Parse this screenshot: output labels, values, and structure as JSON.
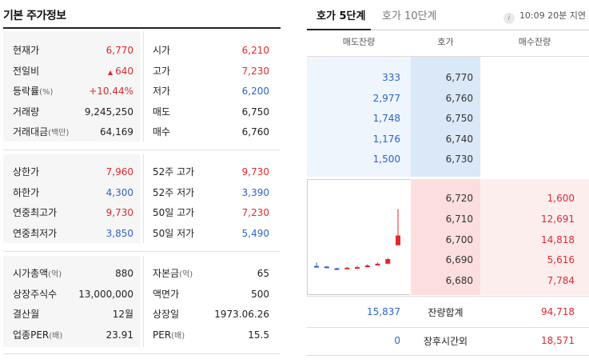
{
  "basic": {
    "title": "기본 주가정보",
    "block1": [
      {
        "l1": "현재가",
        "v1": "6,770",
        "c1": "red",
        "l2": "시가",
        "v2": "6,210",
        "c2": "red"
      },
      {
        "l1": "전일비",
        "v1": "640",
        "c1": "red",
        "tri": "▲",
        "l2": "고가",
        "v2": "7,230",
        "c2": "red"
      },
      {
        "l1": "등락률",
        "l1s": "(%)",
        "v1": "+10.44%",
        "c1": "red",
        "l2": "저가",
        "v2": "6,200",
        "c2": "blue"
      },
      {
        "l1": "거래량",
        "v1": "9,245,250",
        "c1": "",
        "l2": "매도",
        "v2": "6,750",
        "c2": ""
      },
      {
        "l1": "거래대금",
        "l1s": "(백만)",
        "v1": "64,169",
        "c1": "",
        "l2": "매수",
        "v2": "6,760",
        "c2": ""
      }
    ],
    "block2": [
      {
        "l1": "상한가",
        "v1": "7,960",
        "c1": "red",
        "l2": "52주 고가",
        "v2": "9,730",
        "c2": "red"
      },
      {
        "l1": "하한가",
        "v1": "4,300",
        "c1": "blue",
        "l2": "52주 저가",
        "v2": "3,390",
        "c2": "blue"
      },
      {
        "l1": "연중최고가",
        "v1": "9,730",
        "c1": "red",
        "l2": "50일 고가",
        "v2": "7,230",
        "c2": "red"
      },
      {
        "l1": "연중최저가",
        "v1": "3,850",
        "c1": "blue",
        "l2": "50일 저가",
        "v2": "5,490",
        "c2": "blue"
      }
    ],
    "block3": [
      {
        "l1": "시가총액",
        "l1s": "(억)",
        "v1": "880",
        "c1": "",
        "l2": "자본금",
        "l2s": "(억)",
        "v2": "65",
        "c2": ""
      },
      {
        "l1": "상장주식수",
        "v1": "13,000,000",
        "c1": "",
        "l2": "액면가",
        "v2": "500",
        "c2": ""
      },
      {
        "l1": "결산월",
        "v1": "12월",
        "c1": "",
        "l2": "상장일",
        "v2": "1973.06.26",
        "c2": ""
      },
      {
        "l1": "업종PER",
        "l1s": "(배)",
        "v1": "23.91",
        "c1": "",
        "l2": "PER",
        "l2s": "(배)",
        "v2": "15.5",
        "c2": ""
      }
    ]
  },
  "orderbook": {
    "tab_active": "호가 5단계",
    "tab_inactive": "호가 10단계",
    "delay_text": "10:09 20분 지연",
    "headers": {
      "ask": "매도잔량",
      "price": "호가",
      "bid": "매수잔량"
    },
    "asks": [
      {
        "vol": "333",
        "price": "6,770"
      },
      {
        "vol": "2,977",
        "price": "6,760"
      },
      {
        "vol": "1,748",
        "price": "6,750"
      },
      {
        "vol": "1,176",
        "price": "6,740"
      },
      {
        "vol": "1,500",
        "price": "6,730"
      }
    ],
    "bids": [
      {
        "price": "6,720",
        "vol": "1,600"
      },
      {
        "price": "6,710",
        "vol": "12,691"
      },
      {
        "price": "6,700",
        "vol": "14,818"
      },
      {
        "price": "6,690",
        "vol": "5,616"
      },
      {
        "price": "6,680",
        "vol": "7,784"
      }
    ],
    "total": {
      "ask": "15,837",
      "label": "잔량합계",
      "bid": "94,718"
    },
    "after": {
      "ask": "0",
      "label": "장후시간외",
      "bid": "18,571"
    }
  },
  "colors": {
    "up": "#e0292e",
    "down": "#2e63c8"
  },
  "chart_data": {
    "type": "candlestick",
    "candles": [
      {
        "o": 6240,
        "c": 6240,
        "h": 6300,
        "l": 6230,
        "dir": "down"
      },
      {
        "o": 6230,
        "c": 6210,
        "h": 6240,
        "l": 6210,
        "dir": "down"
      },
      {
        "o": 6200,
        "c": 6200,
        "h": 6210,
        "l": 6200,
        "dir": "down"
      },
      {
        "o": 6200,
        "c": 6210,
        "h": 6220,
        "l": 6200,
        "dir": "up"
      },
      {
        "o": 6210,
        "c": 6220,
        "h": 6240,
        "l": 6210,
        "dir": "up"
      },
      {
        "o": 6220,
        "c": 6250,
        "h": 6270,
        "l": 6220,
        "dir": "up"
      },
      {
        "o": 6250,
        "c": 6280,
        "h": 6300,
        "l": 6250,
        "dir": "up"
      },
      {
        "o": 6280,
        "c": 6360,
        "h": 6380,
        "l": 6270,
        "dir": "up"
      },
      {
        "o": 6600,
        "c": 6770,
        "h": 7230,
        "l": 6600,
        "dir": "up"
      }
    ],
    "ylim": [
      6180,
      7250
    ]
  }
}
